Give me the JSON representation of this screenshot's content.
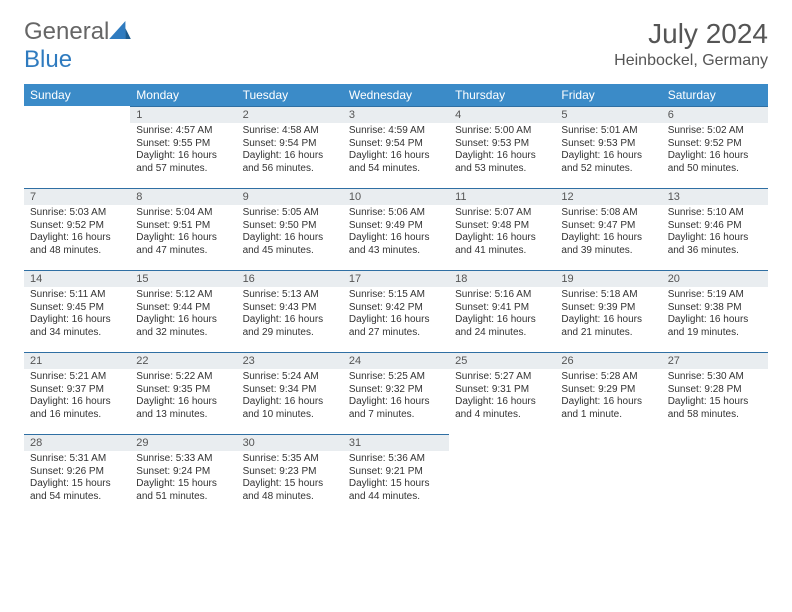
{
  "brand": {
    "part1": "General",
    "part2": "Blue"
  },
  "title": "July 2024",
  "location": "Heinbockel, Germany",
  "colors": {
    "header_bg": "#3b8bc8",
    "header_text": "#ffffff",
    "daynum_bg": "#e9edf0",
    "daynum_border": "#2f6fa3",
    "body_text": "#333333",
    "title_text": "#555555"
  },
  "day_names": [
    "Sunday",
    "Monday",
    "Tuesday",
    "Wednesday",
    "Thursday",
    "Friday",
    "Saturday"
  ],
  "start_offset": 1,
  "days": [
    {
      "n": "1",
      "sunrise": "Sunrise: 4:57 AM",
      "sunset": "Sunset: 9:55 PM",
      "dl1": "Daylight: 16 hours",
      "dl2": "and 57 minutes."
    },
    {
      "n": "2",
      "sunrise": "Sunrise: 4:58 AM",
      "sunset": "Sunset: 9:54 PM",
      "dl1": "Daylight: 16 hours",
      "dl2": "and 56 minutes."
    },
    {
      "n": "3",
      "sunrise": "Sunrise: 4:59 AM",
      "sunset": "Sunset: 9:54 PM",
      "dl1": "Daylight: 16 hours",
      "dl2": "and 54 minutes."
    },
    {
      "n": "4",
      "sunrise": "Sunrise: 5:00 AM",
      "sunset": "Sunset: 9:53 PM",
      "dl1": "Daylight: 16 hours",
      "dl2": "and 53 minutes."
    },
    {
      "n": "5",
      "sunrise": "Sunrise: 5:01 AM",
      "sunset": "Sunset: 9:53 PM",
      "dl1": "Daylight: 16 hours",
      "dl2": "and 52 minutes."
    },
    {
      "n": "6",
      "sunrise": "Sunrise: 5:02 AM",
      "sunset": "Sunset: 9:52 PM",
      "dl1": "Daylight: 16 hours",
      "dl2": "and 50 minutes."
    },
    {
      "n": "7",
      "sunrise": "Sunrise: 5:03 AM",
      "sunset": "Sunset: 9:52 PM",
      "dl1": "Daylight: 16 hours",
      "dl2": "and 48 minutes."
    },
    {
      "n": "8",
      "sunrise": "Sunrise: 5:04 AM",
      "sunset": "Sunset: 9:51 PM",
      "dl1": "Daylight: 16 hours",
      "dl2": "and 47 minutes."
    },
    {
      "n": "9",
      "sunrise": "Sunrise: 5:05 AM",
      "sunset": "Sunset: 9:50 PM",
      "dl1": "Daylight: 16 hours",
      "dl2": "and 45 minutes."
    },
    {
      "n": "10",
      "sunrise": "Sunrise: 5:06 AM",
      "sunset": "Sunset: 9:49 PM",
      "dl1": "Daylight: 16 hours",
      "dl2": "and 43 minutes."
    },
    {
      "n": "11",
      "sunrise": "Sunrise: 5:07 AM",
      "sunset": "Sunset: 9:48 PM",
      "dl1": "Daylight: 16 hours",
      "dl2": "and 41 minutes."
    },
    {
      "n": "12",
      "sunrise": "Sunrise: 5:08 AM",
      "sunset": "Sunset: 9:47 PM",
      "dl1": "Daylight: 16 hours",
      "dl2": "and 39 minutes."
    },
    {
      "n": "13",
      "sunrise": "Sunrise: 5:10 AM",
      "sunset": "Sunset: 9:46 PM",
      "dl1": "Daylight: 16 hours",
      "dl2": "and 36 minutes."
    },
    {
      "n": "14",
      "sunrise": "Sunrise: 5:11 AM",
      "sunset": "Sunset: 9:45 PM",
      "dl1": "Daylight: 16 hours",
      "dl2": "and 34 minutes."
    },
    {
      "n": "15",
      "sunrise": "Sunrise: 5:12 AM",
      "sunset": "Sunset: 9:44 PM",
      "dl1": "Daylight: 16 hours",
      "dl2": "and 32 minutes."
    },
    {
      "n": "16",
      "sunrise": "Sunrise: 5:13 AM",
      "sunset": "Sunset: 9:43 PM",
      "dl1": "Daylight: 16 hours",
      "dl2": "and 29 minutes."
    },
    {
      "n": "17",
      "sunrise": "Sunrise: 5:15 AM",
      "sunset": "Sunset: 9:42 PM",
      "dl1": "Daylight: 16 hours",
      "dl2": "and 27 minutes."
    },
    {
      "n": "18",
      "sunrise": "Sunrise: 5:16 AM",
      "sunset": "Sunset: 9:41 PM",
      "dl1": "Daylight: 16 hours",
      "dl2": "and 24 minutes."
    },
    {
      "n": "19",
      "sunrise": "Sunrise: 5:18 AM",
      "sunset": "Sunset: 9:39 PM",
      "dl1": "Daylight: 16 hours",
      "dl2": "and 21 minutes."
    },
    {
      "n": "20",
      "sunrise": "Sunrise: 5:19 AM",
      "sunset": "Sunset: 9:38 PM",
      "dl1": "Daylight: 16 hours",
      "dl2": "and 19 minutes."
    },
    {
      "n": "21",
      "sunrise": "Sunrise: 5:21 AM",
      "sunset": "Sunset: 9:37 PM",
      "dl1": "Daylight: 16 hours",
      "dl2": "and 16 minutes."
    },
    {
      "n": "22",
      "sunrise": "Sunrise: 5:22 AM",
      "sunset": "Sunset: 9:35 PM",
      "dl1": "Daylight: 16 hours",
      "dl2": "and 13 minutes."
    },
    {
      "n": "23",
      "sunrise": "Sunrise: 5:24 AM",
      "sunset": "Sunset: 9:34 PM",
      "dl1": "Daylight: 16 hours",
      "dl2": "and 10 minutes."
    },
    {
      "n": "24",
      "sunrise": "Sunrise: 5:25 AM",
      "sunset": "Sunset: 9:32 PM",
      "dl1": "Daylight: 16 hours",
      "dl2": "and 7 minutes."
    },
    {
      "n": "25",
      "sunrise": "Sunrise: 5:27 AM",
      "sunset": "Sunset: 9:31 PM",
      "dl1": "Daylight: 16 hours",
      "dl2": "and 4 minutes."
    },
    {
      "n": "26",
      "sunrise": "Sunrise: 5:28 AM",
      "sunset": "Sunset: 9:29 PM",
      "dl1": "Daylight: 16 hours",
      "dl2": "and 1 minute."
    },
    {
      "n": "27",
      "sunrise": "Sunrise: 5:30 AM",
      "sunset": "Sunset: 9:28 PM",
      "dl1": "Daylight: 15 hours",
      "dl2": "and 58 minutes."
    },
    {
      "n": "28",
      "sunrise": "Sunrise: 5:31 AM",
      "sunset": "Sunset: 9:26 PM",
      "dl1": "Daylight: 15 hours",
      "dl2": "and 54 minutes."
    },
    {
      "n": "29",
      "sunrise": "Sunrise: 5:33 AM",
      "sunset": "Sunset: 9:24 PM",
      "dl1": "Daylight: 15 hours",
      "dl2": "and 51 minutes."
    },
    {
      "n": "30",
      "sunrise": "Sunrise: 5:35 AM",
      "sunset": "Sunset: 9:23 PM",
      "dl1": "Daylight: 15 hours",
      "dl2": "and 48 minutes."
    },
    {
      "n": "31",
      "sunrise": "Sunrise: 5:36 AM",
      "sunset": "Sunset: 9:21 PM",
      "dl1": "Daylight: 15 hours",
      "dl2": "and 44 minutes."
    }
  ]
}
